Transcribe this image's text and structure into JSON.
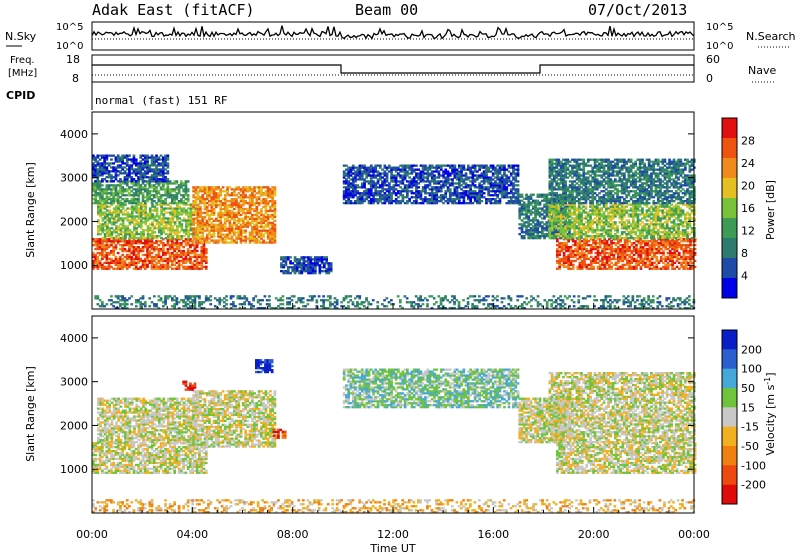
{
  "header": {
    "site": "Adak East (fitACF)",
    "beam": "Beam 00",
    "date": "07/Oct/2013"
  },
  "top_panels": {
    "nsky_label": "N.Sky",
    "nsearch_label": "N.Search",
    "nsky_ticks": [
      "10^5",
      "10^0"
    ],
    "nsearch_ticks": [
      "10^5",
      "10^0"
    ],
    "freq_label_1": "Freq.",
    "freq_label_2": "[MHz]",
    "freq_ticks": [
      "18",
      "8"
    ],
    "nave_label": "Nave",
    "nave_ticks": [
      "60",
      "0"
    ],
    "cpid_label": "CPID",
    "cpid_text": "normal (fast) 151 RF"
  },
  "colors": {
    "power": [
      "#0000e6",
      "#1f4ba8",
      "#2d7a6e",
      "#3d9b55",
      "#79c23c",
      "#e4c021",
      "#f08a1a",
      "#ee5312",
      "#e01010"
    ],
    "velocity": [
      "#0a1ec8",
      "#2a5fd0",
      "#46a8d8",
      "#6ec43c",
      "#c8c8c8",
      "#f0b020",
      "#f08010",
      "#ee4a10",
      "#e00c0c"
    ]
  },
  "chart_data": [
    {
      "type": "heatmap",
      "name_label": "power-panel",
      "ylabel": "Slant Range [km]",
      "xlabel": "Time UT",
      "xlim_hours": [
        0,
        24
      ],
      "ylim": [
        0,
        4500
      ],
      "yticks": [
        1000,
        2000,
        3000,
        4000
      ],
      "ytick_labels": [
        "1000",
        "2000",
        "3000",
        "4000"
      ],
      "xtick_labels": [
        "00:00",
        "04:00",
        "08:00",
        "12:00",
        "16:00",
        "20:00",
        "00:00"
      ],
      "colorbar": {
        "label": "Power [dB]",
        "tick_labels": [
          "4",
          "8",
          "12",
          "16",
          "20",
          "24",
          "28"
        ],
        "range": [
          0,
          32
        ]
      },
      "regions": [
        {
          "t": [
            0.0,
            4.5
          ],
          "r": [
            900,
            1600
          ],
          "level": 7
        },
        {
          "t": [
            0.2,
            4.2
          ],
          "r": [
            1600,
            2400
          ],
          "level": 4
        },
        {
          "t": [
            0.0,
            3.8
          ],
          "r": [
            2400,
            2900
          ],
          "level": 3
        },
        {
          "t": [
            4.0,
            7.3
          ],
          "r": [
            1500,
            2800
          ],
          "level": 6
        },
        {
          "t": [
            0.0,
            3.0
          ],
          "r": [
            2900,
            3500
          ],
          "level": 1
        },
        {
          "t": [
            7.5,
            9.5
          ],
          "r": [
            800,
            1200
          ],
          "level": 1
        },
        {
          "t": [
            10.0,
            17.0
          ],
          "r": [
            2400,
            3300
          ],
          "level": 1
        },
        {
          "t": [
            17.0,
            19.0
          ],
          "r": [
            1600,
            2600
          ],
          "level": 2
        },
        {
          "t": [
            18.5,
            24.0
          ],
          "r": [
            900,
            1600
          ],
          "level": 7
        },
        {
          "t": [
            18.2,
            24.0
          ],
          "r": [
            1600,
            2400
          ],
          "level": 4
        },
        {
          "t": [
            18.2,
            24.0
          ],
          "r": [
            2400,
            3400
          ],
          "level": 2
        },
        {
          "t": [
            0.0,
            24.0
          ],
          "r": [
            0,
            300
          ],
          "level": 2
        }
      ]
    },
    {
      "type": "heatmap",
      "name_label": "velocity-panel",
      "ylabel": "Slant Range [km]",
      "xlabel": "Time UT",
      "xlim_hours": [
        0,
        24
      ],
      "ylim": [
        0,
        4500
      ],
      "yticks": [
        1000,
        2000,
        3000,
        4000
      ],
      "ytick_labels": [
        "1000",
        "2000",
        "3000",
        "4000"
      ],
      "xtick_labels": [
        "00:00",
        "04:00",
        "08:00",
        "12:00",
        "16:00",
        "20:00",
        "00:00"
      ],
      "colorbar": {
        "label": "Velocity [m s",
        "label_sup": "-1",
        "label_end": "]",
        "tick_labels": [
          "200",
          "100",
          "50",
          "15",
          "-15",
          "-50",
          "-100",
          "-200"
        ]
      },
      "regions": [
        {
          "t": [
            0.0,
            4.5
          ],
          "r": [
            900,
            1600
          ],
          "level": 4
        },
        {
          "t": [
            0.2,
            4.2
          ],
          "r": [
            1600,
            2600
          ],
          "level": 4
        },
        {
          "t": [
            4.0,
            7.3
          ],
          "r": [
            1500,
            2800
          ],
          "level": 4
        },
        {
          "t": [
            6.5,
            7.2
          ],
          "r": [
            3200,
            3500
          ],
          "level": 0
        },
        {
          "t": [
            3.6,
            4.1
          ],
          "r": [
            2800,
            3000
          ],
          "level": 8
        },
        {
          "t": [
            7.2,
            7.7
          ],
          "r": [
            1700,
            1900
          ],
          "level": 7
        },
        {
          "t": [
            10.0,
            17.0
          ],
          "r": [
            2400,
            3300
          ],
          "level": 3
        },
        {
          "t": [
            17.0,
            19.0
          ],
          "r": [
            1600,
            2600
          ],
          "level": 4
        },
        {
          "t": [
            18.5,
            24.0
          ],
          "r": [
            900,
            1600
          ],
          "level": 4
        },
        {
          "t": [
            18.2,
            24.0
          ],
          "r": [
            1600,
            3200
          ],
          "level": 4
        },
        {
          "t": [
            0.0,
            24.0
          ],
          "r": [
            0,
            300
          ],
          "level": 5
        }
      ]
    }
  ]
}
